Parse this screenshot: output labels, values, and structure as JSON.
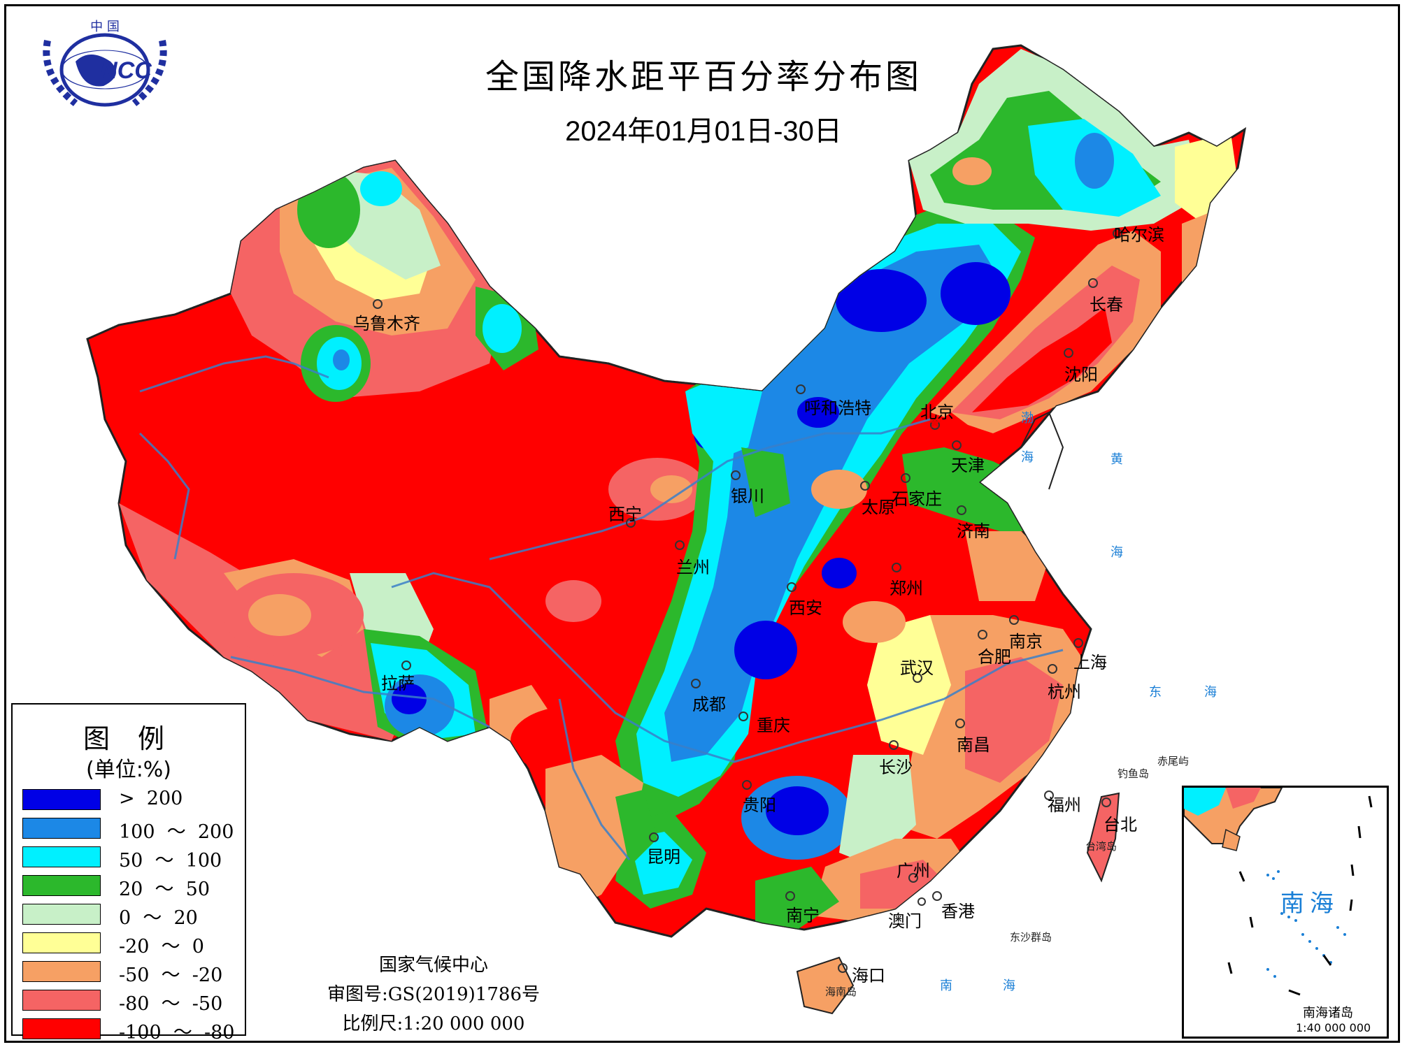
{
  "title": "全国降水距平百分率分布图",
  "subtitle": "2024年01月01日-30日",
  "logo": {
    "top_text": "中 国",
    "center_text": "NCC",
    "icon": "ncc-globe-logo"
  },
  "legend": {
    "title": "图 例",
    "unit": "(单位:%)",
    "items": [
      {
        "label": ">  200",
        "color": "#0000e6"
      },
      {
        "label": "100  ～  200",
        "color": "#1c88e6"
      },
      {
        "label": "50  ～  100",
        "color": "#00f0ff"
      },
      {
        "label": "20  ～  50",
        "color": "#2cb82c"
      },
      {
        "label": "0  ～  20",
        "color": "#c8f0c8"
      },
      {
        "label": "-20  ～  0",
        "color": "#ffff96"
      },
      {
        "label": "-50  ～  -20",
        "color": "#f6a064"
      },
      {
        "label": "-80  ～  -50",
        "color": "#f56464"
      },
      {
        "label": "-100  ～  -80",
        "color": "#ff0000"
      }
    ]
  },
  "footer": {
    "org": "国家气候中心",
    "approval": "审图号:GS(2019)1786号",
    "scale": "比例尺:1:20 000 000"
  },
  "cities": {
    "urumqi": "乌鲁木齐",
    "harbin": "哈尔滨",
    "changchun": "长春",
    "shenyang": "沈阳",
    "hohhot": "呼和浩特",
    "beijing": "北京",
    "tianjin": "天津",
    "yinchuan": "银川",
    "taiyuan": "太原",
    "shijiazhuang": "石家庄",
    "jinan": "济南",
    "xining": "西宁",
    "lanzhou": "兰州",
    "zhengzhou": "郑州",
    "xian": "西安",
    "nanjing": "南京",
    "hefei": "合肥",
    "shanghai": "上海",
    "lhasa": "拉萨",
    "wuhan": "武汉",
    "hangzhou": "杭州",
    "chengdu": "成都",
    "chongqing": "重庆",
    "nanchang": "南昌",
    "changsha": "长沙",
    "guiyang": "贵阳",
    "fuzhou": "福州",
    "taipei": "台北",
    "kunming": "昆明",
    "guangzhou": "广州",
    "nanning": "南宁",
    "hongkong": "香港",
    "macau": "澳门",
    "haikou": "海口"
  },
  "seas": {
    "bohai": "渤",
    "bohai2": "海",
    "yellow_sea": "黄",
    "yellow_sea2": "海",
    "east_sea": "东",
    "east_sea2": "海",
    "south_sea": "南",
    "south_sea2": "海"
  },
  "islands": {
    "diaoyu": "钓鱼岛",
    "chiwei": "赤尾屿",
    "taiwan": "台湾岛",
    "dongsha": "东沙群岛",
    "hainan": "海南岛"
  },
  "inset": {
    "title": "南海",
    "caption": "南海诸岛",
    "scale": "1:40 000 000"
  }
}
